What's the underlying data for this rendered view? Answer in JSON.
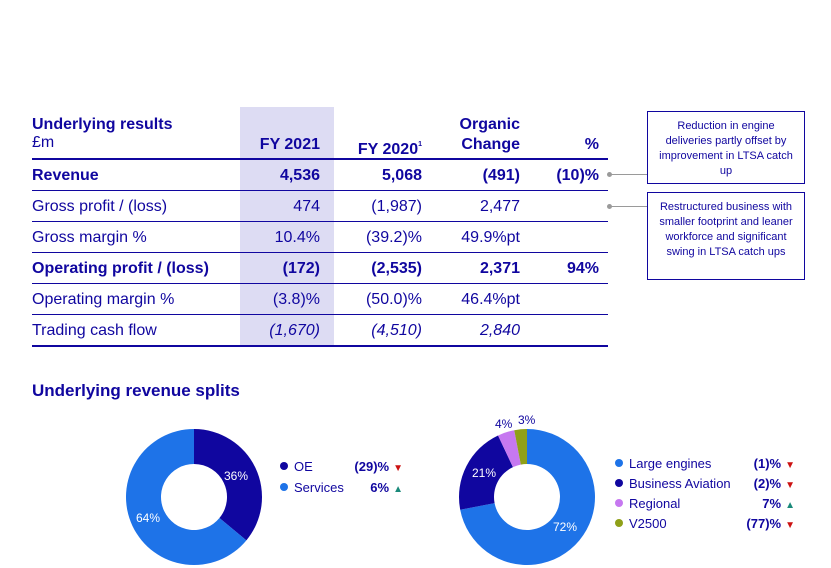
{
  "table": {
    "title": "Underlying results",
    "unit": "£m",
    "headers": {
      "fy2021": "FY 2021",
      "fy2020": "FY 2020",
      "fy2020_note": "1",
      "organic_line1": "Organic",
      "organic_line2": "Change",
      "pct": "%"
    },
    "rows": [
      {
        "label": "Revenue",
        "fy2021": "4,536",
        "fy2020": "5,068",
        "organic": "(491)",
        "pct": "(10)%"
      },
      {
        "label": "Gross profit / (loss)",
        "fy2021": "474",
        "fy2020": "(1,987)",
        "organic": "2,477",
        "pct": ""
      },
      {
        "label": "Gross margin %",
        "fy2021": "10.4%",
        "fy2020": "(39.2)%",
        "organic": "49.9%pt",
        "pct": ""
      },
      {
        "label": "Operating profit / (loss)",
        "fy2021": "(172)",
        "fy2020": "(2,535)",
        "organic": "2,371",
        "pct": "94%"
      },
      {
        "label": "Operating margin %",
        "fy2021": "(3.8)%",
        "fy2020": "(50.0)%",
        "organic": "46.4%pt",
        "pct": ""
      },
      {
        "label": "Trading cash flow",
        "fy2021": "(1,670)",
        "fy2020": "(4,510)",
        "organic": "2,840",
        "pct": ""
      }
    ]
  },
  "annotations": [
    {
      "text": "Reduction in engine deliveries partly offset by improvement in LTSA catch up"
    },
    {
      "text": "Restructured business with smaller footprint and leaner workforce and significant swing in LTSA catch ups"
    }
  ],
  "splits_title": "Underlying revenue splits",
  "colors": {
    "navy": "#10069f",
    "blue": "#1e73e8",
    "purple": "#c678f0",
    "olive": "#8fa018",
    "highlight": "#dddcf3",
    "up": "#1a8a7a",
    "down": "#cc1111"
  },
  "chart_data": [
    {
      "type": "pie",
      "donut": true,
      "categories": [
        "OE",
        "Services"
      ],
      "values": [
        36,
        64
      ],
      "slice_labels": [
        "36%",
        "64%"
      ],
      "colors": [
        "#10069f",
        "#1e73e8"
      ],
      "legend": [
        {
          "label": "OE",
          "change": "(29)%",
          "direction": "down",
          "symbol": "▼"
        },
        {
          "label": "Services",
          "change": "6%",
          "direction": "up",
          "symbol": "▲"
        }
      ]
    },
    {
      "type": "pie",
      "donut": true,
      "categories": [
        "Large engines",
        "Business Aviation",
        "Regional",
        "V2500"
      ],
      "values": [
        72,
        21,
        4,
        3
      ],
      "slice_labels": [
        "72%",
        "21%",
        "4%",
        "3%"
      ],
      "colors": [
        "#1e73e8",
        "#10069f",
        "#c678f0",
        "#8fa018"
      ],
      "legend": [
        {
          "label": "Large engines",
          "change": "(1)%",
          "direction": "down",
          "symbol": "▼"
        },
        {
          "label": "Business Aviation",
          "change": "(2)%",
          "direction": "down",
          "symbol": "▼"
        },
        {
          "label": "Regional",
          "change": "7%",
          "direction": "up",
          "symbol": "▲"
        },
        {
          "label": "V2500",
          "change": "(77)%",
          "direction": "down",
          "symbol": "▼"
        }
      ]
    }
  ]
}
